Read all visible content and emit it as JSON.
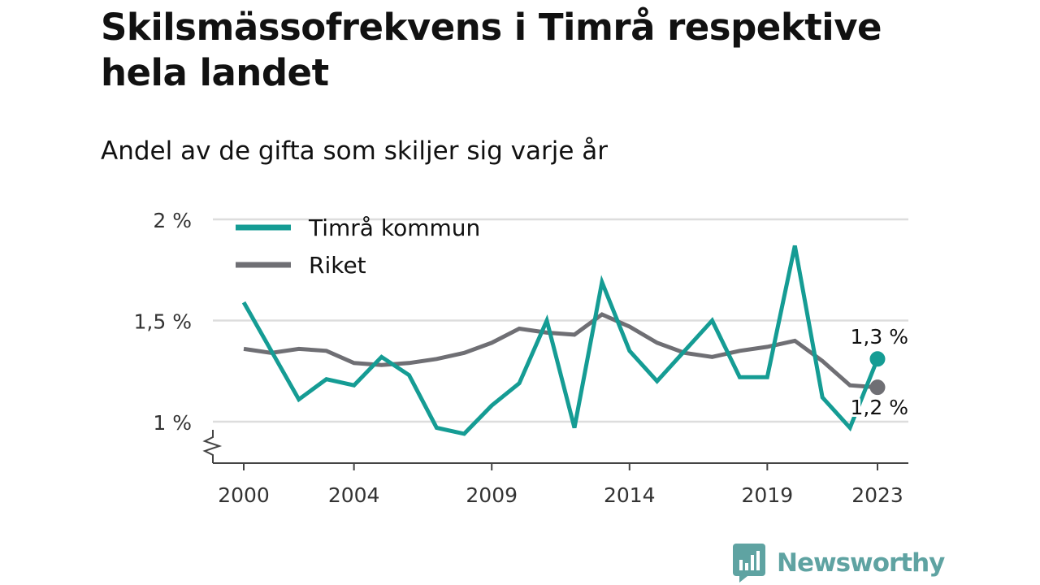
{
  "header": {
    "title": "Skilsmässofrekvens i Timrå respektive hela landet",
    "subtitle": "Andel av de gifta som skiljer sig varje år"
  },
  "brand": {
    "name": "Newsworthy"
  },
  "colors": {
    "timra": "#159c94",
    "riket": "#6f6f74",
    "grid": "#dddddd",
    "axis": "#444444"
  },
  "chart_data": {
    "type": "line",
    "x": [
      2000,
      2001,
      2002,
      2003,
      2004,
      2005,
      2006,
      2007,
      2008,
      2009,
      2010,
      2011,
      2012,
      2013,
      2014,
      2015,
      2016,
      2017,
      2018,
      2019,
      2020,
      2021,
      2022,
      2023
    ],
    "x_ticks": [
      2000,
      2004,
      2009,
      2014,
      2019,
      2023
    ],
    "y_ticks": [
      1,
      1.5,
      2
    ],
    "y_tick_labels": [
      "1 %",
      "1,5 %",
      "2 %"
    ],
    "ylim": [
      0.8,
      2.0
    ],
    "xlim": [
      1999,
      2024
    ],
    "axis_break": true,
    "grid": true,
    "legend_position": "top-left",
    "series": [
      {
        "name": "Timrå kommun",
        "color": "#159c94",
        "values": [
          1.59,
          1.35,
          1.11,
          1.21,
          1.18,
          1.32,
          1.23,
          0.97,
          0.94,
          1.08,
          1.19,
          1.5,
          0.97,
          1.69,
          1.35,
          1.2,
          1.35,
          1.5,
          1.22,
          1.22,
          1.87,
          1.12,
          0.97,
          1.31
        ],
        "end_label": "1,3 %"
      },
      {
        "name": "Riket",
        "color": "#6f6f74",
        "values": [
          1.36,
          1.34,
          1.36,
          1.35,
          1.29,
          1.28,
          1.29,
          1.31,
          1.34,
          1.39,
          1.46,
          1.44,
          1.43,
          1.53,
          1.47,
          1.39,
          1.34,
          1.32,
          1.35,
          1.37,
          1.4,
          1.3,
          1.18,
          1.17
        ],
        "end_label": "1,2 %"
      }
    ]
  }
}
